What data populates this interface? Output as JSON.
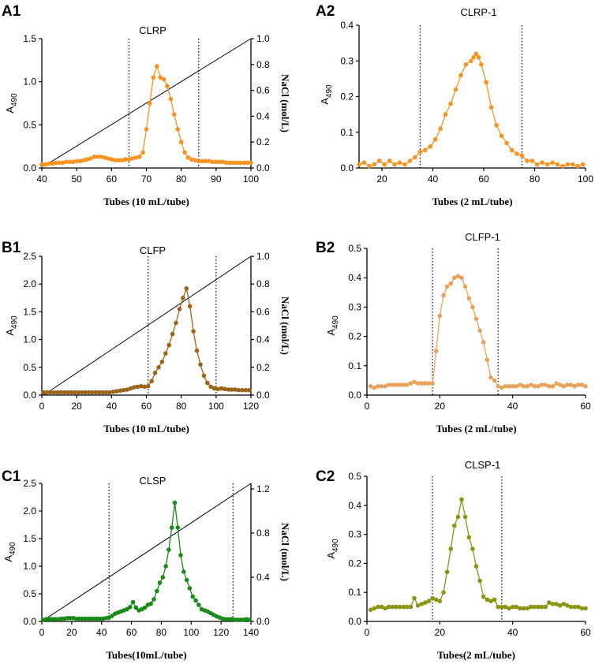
{
  "chart_data": [
    {
      "panel": "A1",
      "title": "CLRP",
      "type": "line",
      "xlabel": "Tubes (10 mL/tube)",
      "ylabel_main": "A",
      "ylabel_sub": "490",
      "y2label": "NaCl (mol/L)",
      "xlim": [
        40,
        100
      ],
      "xticks": [
        "40",
        "50",
        "60",
        "70",
        "80",
        "90",
        "100"
      ],
      "ylim": [
        0,
        1.5
      ],
      "yticks": [
        "0.0",
        "0.5",
        "1.0",
        "1.5"
      ],
      "y2lim": [
        0,
        1.0
      ],
      "y2ticks": [
        "0.0",
        "0.2",
        "0.4",
        "0.6",
        "0.8",
        "1.0"
      ],
      "color": "#F7931E",
      "vlines": [
        65,
        85
      ],
      "gradient": {
        "x": [
          41,
          100
        ],
        "y2": [
          0.02,
          1.0
        ]
      },
      "series": [
        {
          "name": "CLRP",
          "x": [
            40,
            41,
            42,
            43,
            44,
            45,
            46,
            47,
            48,
            49,
            50,
            51,
            52,
            53,
            54,
            55,
            56,
            57,
            58,
            59,
            60,
            61,
            62,
            63,
            64,
            65,
            66,
            67,
            68,
            69,
            70,
            71,
            72,
            73,
            74,
            75,
            76,
            77,
            78,
            79,
            80,
            81,
            82,
            83,
            84,
            85,
            86,
            87,
            88,
            89,
            90,
            91,
            92,
            93,
            94,
            95,
            96,
            97,
            98,
            99,
            100
          ],
          "y": [
            0.04,
            0.04,
            0.05,
            0.05,
            0.06,
            0.06,
            0.06,
            0.07,
            0.07,
            0.07,
            0.08,
            0.08,
            0.09,
            0.1,
            0.11,
            0.13,
            0.13,
            0.13,
            0.12,
            0.11,
            0.1,
            0.09,
            0.09,
            0.09,
            0.1,
            0.1,
            0.11,
            0.12,
            0.13,
            0.18,
            0.45,
            0.75,
            1.05,
            1.18,
            1.05,
            1.03,
            0.95,
            0.8,
            0.62,
            0.45,
            0.3,
            0.18,
            0.12,
            0.1,
            0.09,
            0.08,
            0.08,
            0.08,
            0.08,
            0.07,
            0.07,
            0.07,
            0.07,
            0.06,
            0.06,
            0.06,
            0.06,
            0.06,
            0.06,
            0.06,
            0.06
          ]
        }
      ]
    },
    {
      "panel": "A2",
      "title": "CLRP-1",
      "type": "line",
      "xlabel": "Tubes (2 mL/tube)",
      "ylabel_main": "A",
      "ylabel_sub": "490",
      "xlim": [
        11,
        100
      ],
      "xticks": [
        "20",
        "40",
        "60",
        "80",
        "100"
      ],
      "xtickvals": [
        20,
        40,
        60,
        80,
        100
      ],
      "ylim": [
        0,
        0.4
      ],
      "yticks": [
        "0.0",
        "0.1",
        "0.2",
        "0.3",
        "0.4"
      ],
      "color": "#F7931E",
      "vlines": [
        35,
        75
      ],
      "series": [
        {
          "name": "CLRP-1",
          "x": [
            11,
            13,
            15,
            17,
            19,
            21,
            23,
            25,
            27,
            29,
            31,
            33,
            35,
            37,
            39,
            41,
            43,
            45,
            47,
            49,
            51,
            53,
            55,
            56,
            57,
            58,
            59,
            61,
            63,
            65,
            67,
            69,
            71,
            73,
            75,
            77,
            79,
            81,
            83,
            85,
            87,
            89,
            91,
            93,
            95,
            97,
            99
          ],
          "y": [
            0.01,
            0.015,
            0.005,
            0.01,
            0.02,
            0.01,
            0.02,
            0.01,
            0.015,
            0.01,
            0.02,
            0.03,
            0.045,
            0.05,
            0.06,
            0.08,
            0.11,
            0.15,
            0.18,
            0.22,
            0.26,
            0.29,
            0.3,
            0.31,
            0.32,
            0.31,
            0.29,
            0.24,
            0.17,
            0.12,
            0.09,
            0.07,
            0.05,
            0.04,
            0.035,
            0.02,
            0.02,
            0.01,
            0.015,
            0.01,
            0.015,
            0.01,
            0.005,
            0.01,
            0.01,
            0.005,
            0.01
          ]
        }
      ]
    },
    {
      "panel": "B1",
      "title": "CLFP",
      "type": "line",
      "xlabel": "Tubes (10 mL/tube)",
      "ylabel_main": "A",
      "ylabel_sub": "490",
      "y2label": "NaCl (mol/L)",
      "xlim": [
        0,
        120
      ],
      "xticks": [
        "0",
        "20",
        "40",
        "60",
        "80",
        "100",
        "120"
      ],
      "ylim": [
        0,
        2.5
      ],
      "yticks": [
        "0.0",
        "0.5",
        "1.0",
        "1.5",
        "2.0",
        "2.5"
      ],
      "y2lim": [
        0,
        1.0
      ],
      "y2ticks": [
        "0.0",
        "0.2",
        "0.4",
        "0.6",
        "0.8",
        "1.0"
      ],
      "color": "#9C6418",
      "vlines": [
        61,
        100
      ],
      "gradient": {
        "x": [
          1,
          120
        ],
        "y2": [
          0.0,
          1.0
        ]
      },
      "series": [
        {
          "name": "CLFP",
          "x": [
            1,
            3,
            5,
            7,
            9,
            11,
            13,
            15,
            17,
            19,
            21,
            23,
            25,
            27,
            29,
            31,
            33,
            35,
            37,
            39,
            41,
            43,
            45,
            47,
            49,
            51,
            53,
            55,
            57,
            59,
            61,
            63,
            65,
            67,
            69,
            71,
            73,
            75,
            77,
            79,
            81,
            83,
            85,
            87,
            89,
            91,
            93,
            95,
            97,
            99,
            101,
            103,
            105,
            107,
            109,
            111,
            113,
            115,
            117,
            119
          ],
          "y": [
            0.05,
            0.05,
            0.05,
            0.05,
            0.05,
            0.05,
            0.05,
            0.05,
            0.05,
            0.05,
            0.05,
            0.05,
            0.05,
            0.05,
            0.05,
            0.05,
            0.05,
            0.05,
            0.05,
            0.05,
            0.06,
            0.07,
            0.08,
            0.09,
            0.1,
            0.12,
            0.14,
            0.15,
            0.16,
            0.15,
            0.16,
            0.25,
            0.4,
            0.5,
            0.6,
            0.75,
            0.9,
            1.1,
            1.3,
            1.55,
            1.75,
            1.92,
            1.6,
            1.15,
            0.8,
            0.55,
            0.35,
            0.22,
            0.15,
            0.12,
            0.11,
            0.12,
            0.11,
            0.1,
            0.1,
            0.1,
            0.09,
            0.09,
            0.09,
            0.09
          ]
        }
      ]
    },
    {
      "panel": "B2",
      "title": "CLFP-1",
      "type": "line",
      "xlabel": "Tubes (2 mL/tube)",
      "ylabel_main": "A",
      "ylabel_sub": "490",
      "xlim": [
        0,
        60
      ],
      "xticks": [
        "0",
        "20",
        "40",
        "60"
      ],
      "ylim": [
        0,
        0.5
      ],
      "yticks": [
        "0.0",
        "0.1",
        "0.2",
        "0.3",
        "0.4",
        "0.5"
      ],
      "color": "#E8A25A",
      "vlines": [
        18,
        36
      ],
      "series": [
        {
          "name": "CLFP-1",
          "x": [
            1,
            2,
            3,
            4,
            5,
            6,
            7,
            8,
            9,
            10,
            11,
            12,
            13,
            14,
            15,
            16,
            17,
            18,
            19,
            20,
            21,
            22,
            23,
            24,
            25,
            26,
            27,
            28,
            29,
            30,
            31,
            32,
            33,
            34,
            35,
            36,
            37,
            38,
            39,
            40,
            41,
            42,
            43,
            44,
            45,
            46,
            47,
            48,
            49,
            50,
            51,
            52,
            53,
            54,
            55,
            56,
            57,
            58,
            59,
            60
          ],
          "y": [
            0.03,
            0.025,
            0.03,
            0.03,
            0.03,
            0.035,
            0.035,
            0.035,
            0.035,
            0.035,
            0.035,
            0.04,
            0.045,
            0.04,
            0.04,
            0.04,
            0.04,
            0.04,
            0.15,
            0.27,
            0.34,
            0.37,
            0.38,
            0.4,
            0.405,
            0.4,
            0.37,
            0.33,
            0.3,
            0.26,
            0.22,
            0.18,
            0.12,
            0.06,
            0.05,
            0.03,
            0.025,
            0.03,
            0.03,
            0.03,
            0.03,
            0.035,
            0.03,
            0.03,
            0.035,
            0.03,
            0.03,
            0.035,
            0.035,
            0.03,
            0.03,
            0.04,
            0.035,
            0.03,
            0.035,
            0.035,
            0.03,
            0.035,
            0.035,
            0.03
          ]
        }
      ]
    },
    {
      "panel": "C1",
      "title": "CLSP",
      "type": "line",
      "xlabel": "Tubes(10mL/tube)",
      "ylabel_main": "A",
      "ylabel_sub": "490",
      "y2label": "NaCl (mol/L)",
      "xlim": [
        0,
        140
      ],
      "xticks": [
        "0",
        "20",
        "40",
        "60",
        "80",
        "100",
        "120",
        "140"
      ],
      "ylim": [
        0,
        2.5
      ],
      "yticks": [
        "0.0",
        "0.5",
        "1.0",
        "1.5",
        "2.0",
        "2.5"
      ],
      "y2lim": [
        0,
        1.25
      ],
      "y2ticks": [
        "0.0",
        "0.4",
        "0.8",
        "1.2"
      ],
      "y2tickvals": [
        0.0,
        0.4,
        0.8,
        1.2
      ],
      "color": "#1A8A1A",
      "vlines": [
        45,
        128
      ],
      "gradient": {
        "x": [
          0,
          140
        ],
        "y2": [
          0.0,
          1.25
        ]
      },
      "series": [
        {
          "name": "CLSP",
          "x": [
            1,
            3,
            5,
            7,
            9,
            11,
            13,
            15,
            17,
            19,
            21,
            23,
            25,
            27,
            29,
            31,
            33,
            35,
            37,
            39,
            41,
            43,
            45,
            47,
            49,
            51,
            53,
            55,
            57,
            59,
            61,
            63,
            65,
            67,
            69,
            71,
            73,
            75,
            77,
            79,
            81,
            83,
            85,
            87,
            89,
            91,
            93,
            95,
            97,
            99,
            101,
            103,
            105,
            107,
            109,
            111,
            113,
            115,
            117,
            119,
            121,
            123,
            125,
            127,
            129,
            131,
            133,
            135,
            137,
            139
          ],
          "y": [
            0.03,
            0.04,
            0.04,
            0.04,
            0.04,
            0.04,
            0.05,
            0.05,
            0.06,
            0.06,
            0.06,
            0.05,
            0.05,
            0.05,
            0.05,
            0.05,
            0.05,
            0.05,
            0.05,
            0.05,
            0.05,
            0.06,
            0.07,
            0.1,
            0.14,
            0.16,
            0.18,
            0.2,
            0.22,
            0.26,
            0.35,
            0.25,
            0.2,
            0.22,
            0.25,
            0.3,
            0.32,
            0.4,
            0.55,
            0.7,
            0.8,
            1.0,
            1.3,
            1.7,
            2.15,
            1.7,
            1.2,
            0.9,
            0.75,
            0.6,
            0.45,
            0.38,
            0.3,
            0.22,
            0.2,
            0.18,
            0.15,
            0.12,
            0.09,
            0.07,
            0.05,
            0.04,
            0.04,
            0.04,
            0.03,
            0.03,
            0.03,
            0.03,
            0.04,
            0.03
          ]
        }
      ]
    },
    {
      "panel": "C2",
      "title": "CLSP-1",
      "type": "line",
      "xlabel": "Tubes(2 mL/tube)",
      "ylabel_main": "A",
      "ylabel_sub": "490",
      "xlim": [
        0,
        60
      ],
      "xticks": [
        "0",
        "20",
        "40",
        "60"
      ],
      "ylim": [
        0,
        0.5
      ],
      "yticks": [
        "0.0",
        "0.1",
        "0.2",
        "0.3",
        "0.4",
        "0.5"
      ],
      "color": "#8C9414",
      "vlines": [
        18,
        37
      ],
      "series": [
        {
          "name": "CLSP-1",
          "x": [
            1,
            2,
            3,
            4,
            5,
            6,
            7,
            8,
            9,
            10,
            11,
            12,
            13,
            14,
            15,
            16,
            17,
            18,
            19,
            20,
            21,
            22,
            23,
            24,
            25,
            26,
            27,
            28,
            29,
            30,
            31,
            32,
            33,
            34,
            35,
            36,
            37,
            38,
            39,
            40,
            41,
            42,
            43,
            44,
            45,
            46,
            47,
            48,
            49,
            50,
            51,
            52,
            53,
            54,
            55,
            56,
            57,
            58,
            59,
            60
          ],
          "y": [
            0.04,
            0.045,
            0.05,
            0.05,
            0.045,
            0.05,
            0.05,
            0.05,
            0.05,
            0.05,
            0.05,
            0.05,
            0.08,
            0.055,
            0.06,
            0.065,
            0.07,
            0.08,
            0.075,
            0.07,
            0.1,
            0.17,
            0.25,
            0.33,
            0.36,
            0.42,
            0.36,
            0.29,
            0.25,
            0.19,
            0.14,
            0.085,
            0.075,
            0.07,
            0.075,
            0.05,
            0.05,
            0.05,
            0.045,
            0.05,
            0.05,
            0.045,
            0.045,
            0.045,
            0.05,
            0.05,
            0.05,
            0.05,
            0.05,
            0.065,
            0.06,
            0.06,
            0.055,
            0.06,
            0.055,
            0.05,
            0.05,
            0.05,
            0.045,
            0.045
          ]
        }
      ]
    }
  ]
}
